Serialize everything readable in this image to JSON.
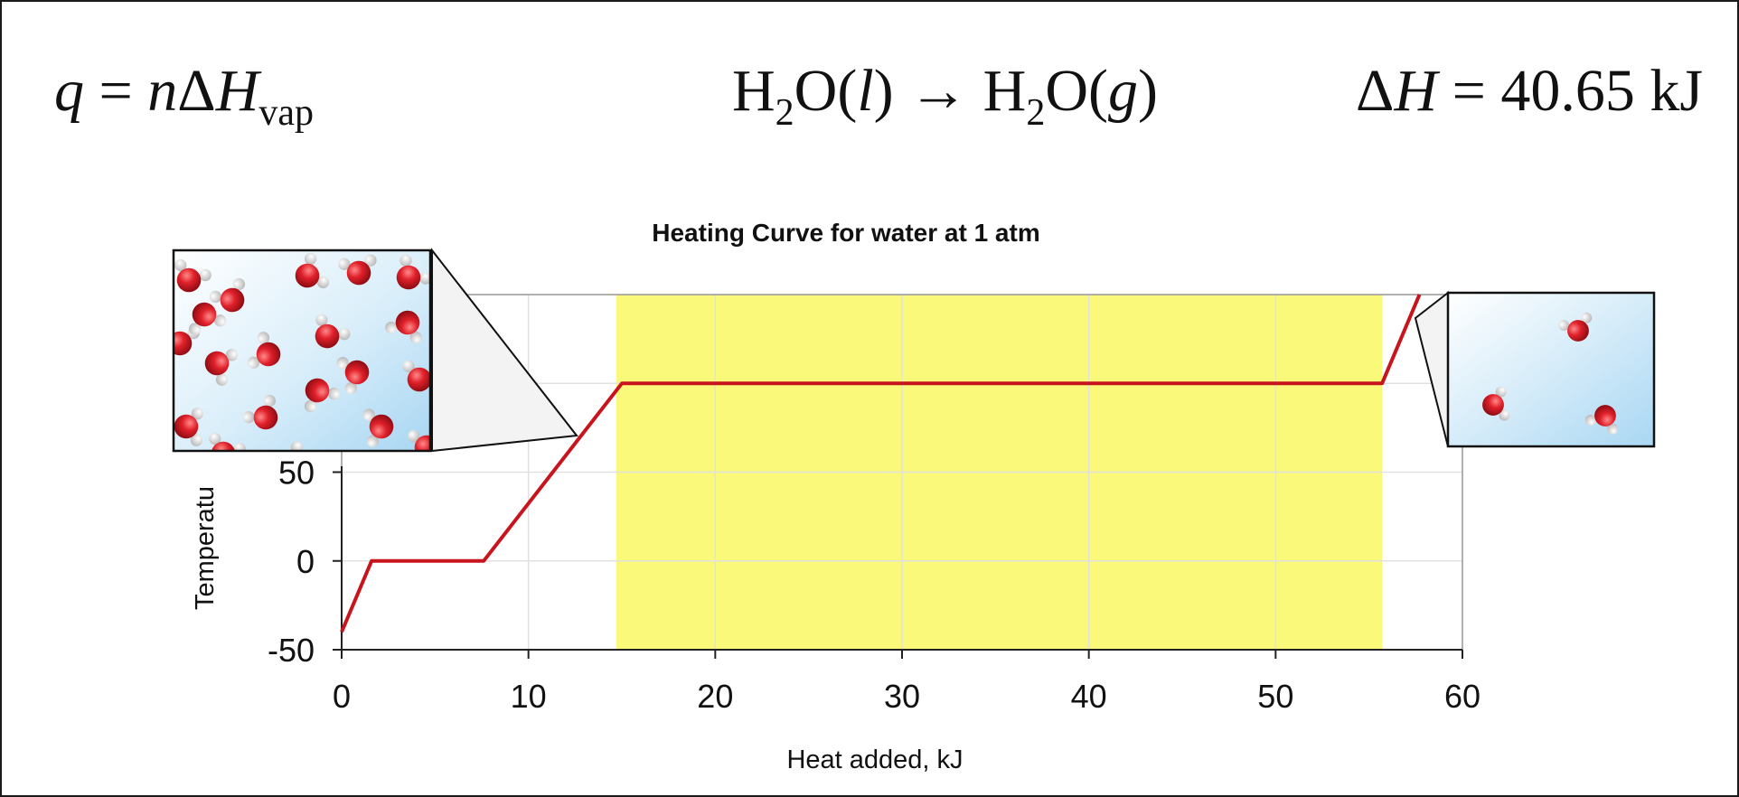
{
  "equations": {
    "left": {
      "q": "q",
      "eq": " = ",
      "n": "n",
      "delta": "Δ",
      "H": "H",
      "sub": "vap"
    },
    "middle": {
      "h1": "H",
      "s1": "2",
      "o1": "O(",
      "l": "l",
      "c1": ") → H",
      "s2": "2",
      "o2": "O(",
      "g": "g",
      "c2": ")"
    },
    "right": {
      "delta": "Δ",
      "H": "H",
      "rest": " = 40.65 kJ"
    }
  },
  "colors": {
    "curve": "#c8141c",
    "highlight": "#fbf97a",
    "molecule_oxygen": "#e0202a",
    "molecule_hydrogen": "#f2f2f2",
    "inset_background": "#cfe8f8"
  },
  "chart_data": {
    "type": "line",
    "title": "Heating Curve for water at 1 atm",
    "xlabel": "Heat added, kJ",
    "ylabel": "Temperatu",
    "xlim": [
      0,
      60
    ],
    "ylim": [
      -50,
      150
    ],
    "x_ticks": [
      0,
      10,
      20,
      30,
      40,
      50,
      60
    ],
    "y_ticks": [
      -50,
      0,
      50
    ],
    "grid": true,
    "series": [
      {
        "points": [
          [
            0,
            -40
          ],
          [
            1.6,
            0
          ],
          [
            7.6,
            0
          ],
          [
            15,
            100
          ],
          [
            55.7,
            100
          ],
          [
            57.7,
            150
          ]
        ]
      }
    ],
    "highlight_region": {
      "x": [
        14.7,
        55.7
      ],
      "y": [
        -50,
        150
      ]
    }
  },
  "insets": {
    "liquid": {
      "depicts": "liquid-water-molecules-icon"
    },
    "gas": {
      "depicts": "water-vapor-molecules-icon"
    }
  }
}
